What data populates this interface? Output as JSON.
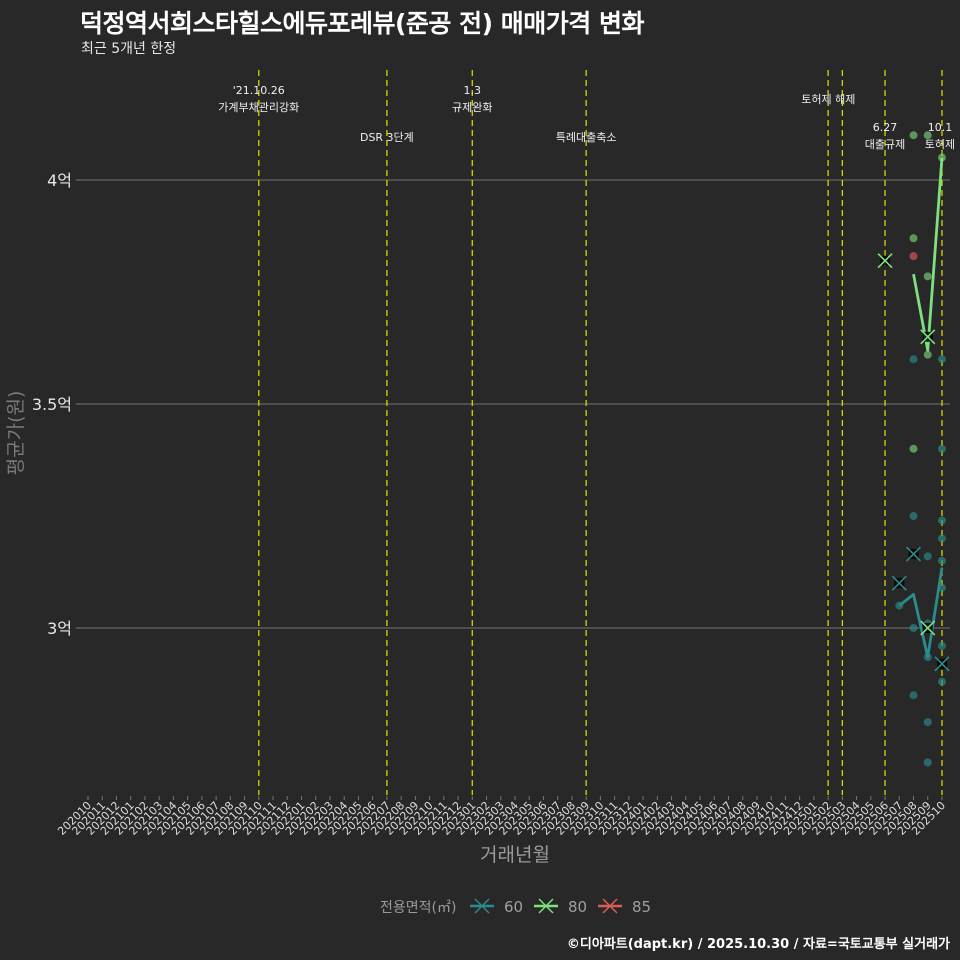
{
  "header": {
    "title": "덕정역서희스타힐스에듀포레뷰(준공 전) 매매가격 변화",
    "subtitle": "최근 5개년 한정"
  },
  "caption": "©디아파트(dapt.kr) / 2025.10.30 / 자료=국토교통부 실거래가",
  "colors": {
    "background": "#282828",
    "grid": "#5a5a5a",
    "vline": "#d4d400",
    "area60": "#2a8c8c",
    "area80": "#7ee07e",
    "area85": "#e05a5a"
  },
  "chart_data": {
    "type": "line",
    "title": "덕정역서희스타힐스에듀포레뷰(준공 전) 매매가격 변화",
    "subtitle": "최근 5개년 한정",
    "xlabel": "거래년월",
    "ylabel": "평균가(원)",
    "ylim": [
      2.63,
      4.25
    ],
    "y_ticks": [
      {
        "value": 3.0,
        "label": "3억"
      },
      {
        "value": 3.5,
        "label": "3.5억"
      },
      {
        "value": 4.0,
        "label": "4억"
      }
    ],
    "x_ticks": [
      "202010",
      "202011",
      "202012",
      "202101",
      "202102",
      "202103",
      "202104",
      "202105",
      "202106",
      "202107",
      "202108",
      "202109",
      "202110",
      "202111",
      "202112",
      "202201",
      "202202",
      "202203",
      "202204",
      "202205",
      "202206",
      "202207",
      "202208",
      "202209",
      "202210",
      "202211",
      "202212",
      "202301",
      "202302",
      "202303",
      "202304",
      "202305",
      "202306",
      "202307",
      "202308",
      "202309",
      "202310",
      "202311",
      "202312",
      "202401",
      "202402",
      "202403",
      "202404",
      "202405",
      "202406",
      "202407",
      "202408",
      "202409",
      "202410",
      "202411",
      "202412",
      "202501",
      "202502",
      "202503",
      "202504",
      "202505",
      "202506",
      "202507",
      "202508",
      "202509",
      "202510"
    ],
    "legend": {
      "title": "전용면적(㎡)",
      "position": "bottom",
      "entries": [
        "60",
        "80",
        "85"
      ]
    },
    "grid": true,
    "events": [
      {
        "x": "202110",
        "label1": "'21.10.26",
        "label2": "가계부채관리강화",
        "row": 1
      },
      {
        "x": "202207",
        "label1": "",
        "label2": "DSR 3단계",
        "row": 2
      },
      {
        "x": "202301",
        "label1": "1.3",
        "label2": "규제완화",
        "row": 1
      },
      {
        "x": "202309",
        "label1": "",
        "label2": "특례대출축소",
        "row": 2
      },
      {
        "x": "202502",
        "label1": "",
        "label2": "",
        "row": 0
      },
      {
        "x": "202503",
        "label1": "",
        "label2": "토허제 해제",
        "row": 0
      },
      {
        "x": "202506",
        "label1": "6.27",
        "label2": "대출규제",
        "row": 3
      },
      {
        "x": "202510",
        "label1": "10.1",
        "label2": "토허제",
        "row": 3
      }
    ],
    "series": [
      {
        "name": "60",
        "line": [
          {
            "x": "202507",
            "y": 3.05
          },
          {
            "x": "202508",
            "y": 3.075
          },
          {
            "x": "202509",
            "y": 2.935
          },
          {
            "x": "202510",
            "y": 3.135
          }
        ],
        "mean_markers": [
          {
            "x": "202507",
            "y": 3.1
          },
          {
            "x": "202508",
            "y": 3.165
          },
          {
            "x": "202510",
            "y": 2.92
          }
        ],
        "points": [
          {
            "x": "202507",
            "y": 3.05
          },
          {
            "x": "202508",
            "y": 3.25
          },
          {
            "x": "202508",
            "y": 3.0
          },
          {
            "x": "202508",
            "y": 2.85
          },
          {
            "x": "202508",
            "y": 3.6
          },
          {
            "x": "202509",
            "y": 3.16
          },
          {
            "x": "202509",
            "y": 3.01
          },
          {
            "x": "202509",
            "y": 2.935
          },
          {
            "x": "202509",
            "y": 2.79
          },
          {
            "x": "202509",
            "y": 2.7
          },
          {
            "x": "202510",
            "y": 3.6
          },
          {
            "x": "202510",
            "y": 3.4
          },
          {
            "x": "202510",
            "y": 3.24
          },
          {
            "x": "202510",
            "y": 3.2
          },
          {
            "x": "202510",
            "y": 3.15
          },
          {
            "x": "202510",
            "y": 3.09
          },
          {
            "x": "202510",
            "y": 2.96
          },
          {
            "x": "202510",
            "y": 2.88
          }
        ]
      },
      {
        "name": "80",
        "line": [
          {
            "x": "202508",
            "y": 3.79
          },
          {
            "x": "202509",
            "y": 3.62
          },
          {
            "x": "202510",
            "y": 4.05
          }
        ],
        "mean_markers": [
          {
            "x": "202506",
            "y": 3.82
          },
          {
            "x": "202509",
            "y": 3.65
          },
          {
            "x": "202509",
            "y": 3.0
          }
        ],
        "points": [
          {
            "x": "202508",
            "y": 4.1
          },
          {
            "x": "202508",
            "y": 3.87
          },
          {
            "x": "202508",
            "y": 3.4
          },
          {
            "x": "202509",
            "y": 4.1
          },
          {
            "x": "202509",
            "y": 3.785
          },
          {
            "x": "202509",
            "y": 3.61
          },
          {
            "x": "202510",
            "y": 4.05
          }
        ]
      },
      {
        "name": "85",
        "line": [],
        "mean_markers": [],
        "points": [
          {
            "x": "202508",
            "y": 3.83
          }
        ]
      }
    ]
  }
}
